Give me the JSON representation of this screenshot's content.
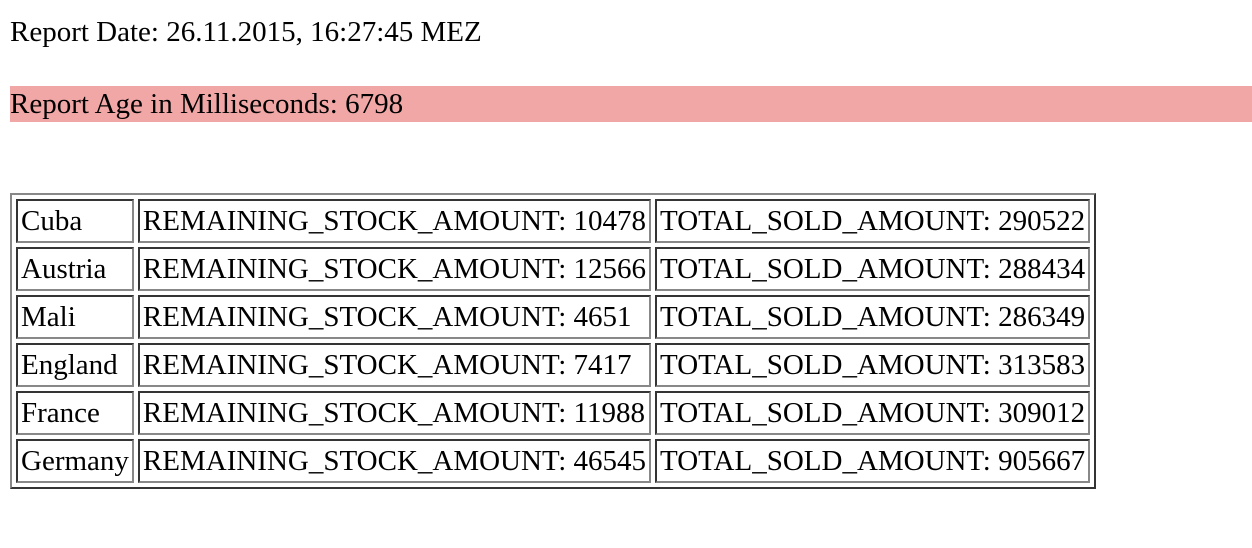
{
  "report": {
    "date_line": "Report Date: 26.11.2015, 16:27:45 MEZ",
    "age_line": "Report Age in Milliseconds: 6798",
    "age_highlight_color": "#f2a7a7"
  },
  "table": {
    "rows": [
      {
        "country": "Cuba",
        "remaining": "REMAINING_STOCK_AMOUNT: 10478",
        "sold": "TOTAL_SOLD_AMOUNT: 290522"
      },
      {
        "country": "Austria",
        "remaining": "REMAINING_STOCK_AMOUNT: 12566",
        "sold": "TOTAL_SOLD_AMOUNT: 288434"
      },
      {
        "country": "Mali",
        "remaining": "REMAINING_STOCK_AMOUNT: 4651",
        "sold": "TOTAL_SOLD_AMOUNT: 286349"
      },
      {
        "country": "England",
        "remaining": "REMAINING_STOCK_AMOUNT: 7417",
        "sold": "TOTAL_SOLD_AMOUNT: 313583"
      },
      {
        "country": "France",
        "remaining": "REMAINING_STOCK_AMOUNT: 11988",
        "sold": "TOTAL_SOLD_AMOUNT: 309012"
      },
      {
        "country": "Germany",
        "remaining": "REMAINING_STOCK_AMOUNT: 46545",
        "sold": "TOTAL_SOLD_AMOUNT: 905667"
      }
    ]
  }
}
